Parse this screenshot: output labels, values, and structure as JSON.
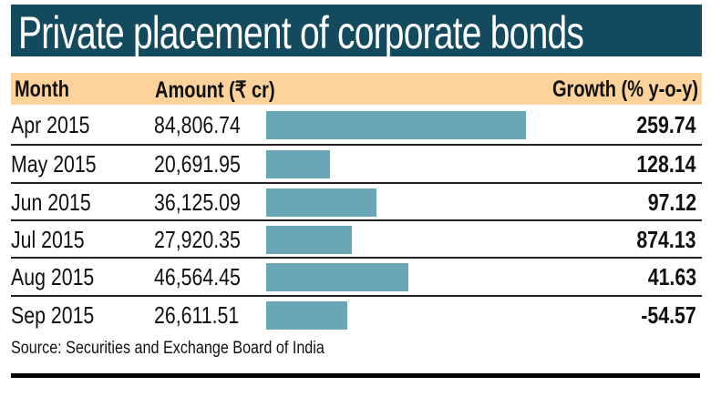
{
  "chart_data": {
    "type": "table",
    "title": "Private placement of corporate bonds",
    "columns": [
      "Month",
      "Amount (₹ cr)",
      "Growth (% y-o-y)"
    ],
    "rows": [
      {
        "month": "Apr 2015",
        "amount": "84,806.74",
        "amount_value": 84806.74,
        "growth": "259.74"
      },
      {
        "month": "May 2015",
        "amount": "20,691.95",
        "amount_value": 20691.95,
        "growth": "128.14"
      },
      {
        "month": "Jun 2015",
        "amount": "36,125.09",
        "amount_value": 36125.09,
        "growth": "97.12"
      },
      {
        "month": "Jul 2015",
        "amount": "27,920.35",
        "amount_value": 27920.35,
        "growth": "874.13"
      },
      {
        "month": "Aug 2015",
        "amount": "46,564.45",
        "amount_value": 46564.45,
        "growth": "41.63"
      },
      {
        "month": "Sep 2015",
        "amount": "26,611.51",
        "amount_value": 26611.51,
        "growth": "-54.57"
      }
    ],
    "source": "Source: Securities and Exchange Board of India",
    "colors": {
      "title_bg": "#134a5e",
      "header_bg": "#fdd39b",
      "bar": "#69a7b7"
    }
  }
}
